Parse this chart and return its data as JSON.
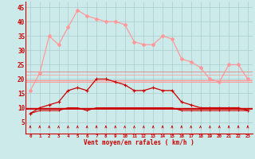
{
  "x": [
    0,
    1,
    2,
    3,
    4,
    5,
    6,
    7,
    8,
    9,
    10,
    11,
    12,
    13,
    14,
    15,
    16,
    17,
    18,
    19,
    20,
    21,
    22,
    23
  ],
  "series_rafales": [
    16,
    22,
    35,
    32,
    38,
    44,
    42,
    41,
    40,
    40,
    39,
    33,
    32,
    32,
    35,
    34,
    27,
    26,
    24,
    20,
    19,
    25,
    25,
    20
  ],
  "series_moyen_high": [
    8,
    10,
    11,
    12,
    16,
    17,
    16,
    20,
    20,
    19,
    18,
    16,
    16,
    17,
    16,
    16,
    12,
    11,
    10,
    10,
    10,
    10,
    10,
    9
  ],
  "series_moyen_low": [
    8,
    9,
    9,
    9,
    10,
    10,
    9,
    10,
    10,
    10,
    10,
    10,
    10,
    10,
    10,
    10,
    9,
    9,
    9,
    9,
    9,
    9,
    9,
    9
  ],
  "hline_light_upper": 19.5,
  "hline_light_lower": 19.0,
  "hline_mid1": 22.5,
  "hline_mid2": 21.5,
  "hline_dark1": 10.0,
  "hline_dark2": 9.5,
  "bg_color": "#cceaea",
  "grid_color": "#aacccc",
  "color_dark": "#cc0000",
  "color_light": "#ff9999",
  "color_mid": "#ee6666",
  "xlabel": "Vent moyen/en rafales ( km/h )",
  "xlim": [
    -0.5,
    23.5
  ],
  "ylim": [
    1,
    47
  ],
  "yticks": [
    5,
    10,
    15,
    20,
    25,
    30,
    35,
    40,
    45
  ]
}
